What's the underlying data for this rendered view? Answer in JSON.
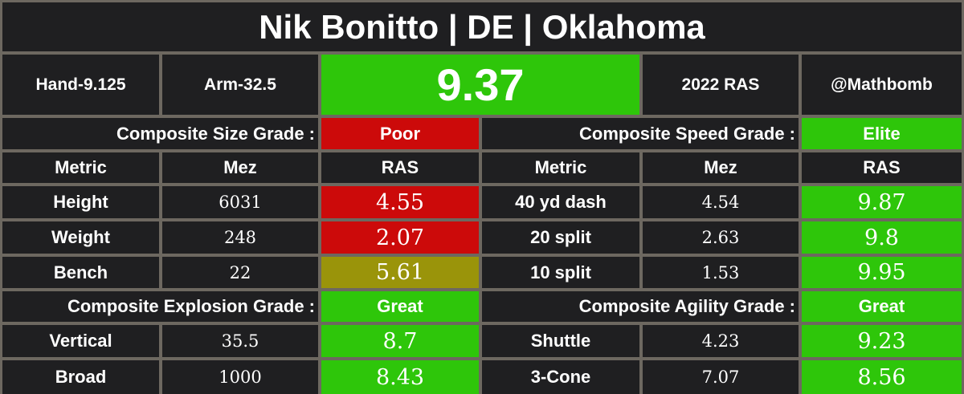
{
  "header": {
    "title": "Nik Bonitto | DE | Oklahoma",
    "hand": "Hand-9.125",
    "arm": "Arm-32.5",
    "ras_score": "9.37",
    "year_label": "2022 RAS",
    "handle": "@Mathbomb"
  },
  "colors": {
    "elite_green": "#2ec60a",
    "poor_red": "#cc0a0a",
    "average_olive": "#9a940a",
    "cell_background": "#1f1f21",
    "grid_lines": "#6d6860"
  },
  "size_section": {
    "grade_label": "Composite Size Grade :",
    "grade": "Poor",
    "columns": [
      "Metric",
      "Mez",
      "RAS"
    ],
    "rows": [
      {
        "metric": "Height",
        "mez": "6031",
        "ras": "4.55"
      },
      {
        "metric": "Weight",
        "mez": "248",
        "ras": "2.07"
      },
      {
        "metric": "Bench",
        "mez": "22",
        "ras": "5.61"
      }
    ]
  },
  "speed_section": {
    "grade_label": "Composite Speed Grade :",
    "grade": "Elite",
    "columns": [
      "Metric",
      "Mez",
      "RAS"
    ],
    "rows": [
      {
        "metric": "40 yd dash",
        "mez": "4.54",
        "ras": "9.87"
      },
      {
        "metric": "20 split",
        "mez": "2.63",
        "ras": "9.8"
      },
      {
        "metric": "10 split",
        "mez": "1.53",
        "ras": "9.95"
      }
    ]
  },
  "explosion_section": {
    "grade_label": "Composite Explosion Grade :",
    "grade": "Great",
    "rows": [
      {
        "metric": "Vertical",
        "mez": "35.5",
        "ras": "8.7"
      },
      {
        "metric": "Broad",
        "mez": "1000",
        "ras": "8.43"
      }
    ]
  },
  "agility_section": {
    "grade_label": "Composite Agility Grade :",
    "grade": "Great",
    "rows": [
      {
        "metric": "Shuttle",
        "mez": "4.23",
        "ras": "9.23"
      },
      {
        "metric": "3-Cone",
        "mez": "7.07",
        "ras": "8.56"
      }
    ]
  }
}
